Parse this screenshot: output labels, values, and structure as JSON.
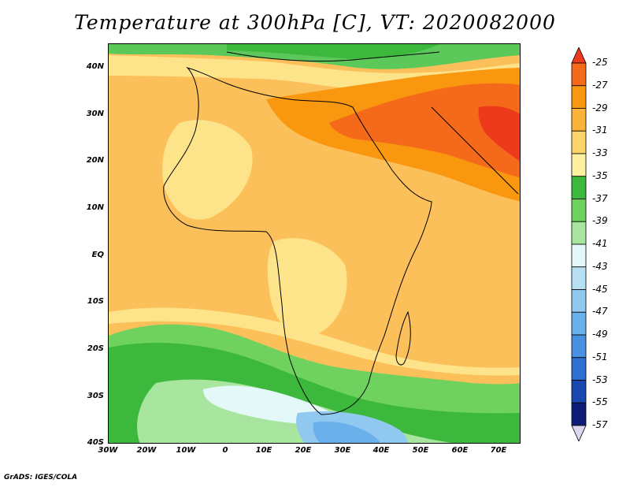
{
  "title": "Temperature at 300hPa [C], VT: 2020082000",
  "footer": "GrADS: IGES/COLA",
  "latitude_labels": [
    "40N",
    "30N",
    "20N",
    "10N",
    "EQ",
    "10S",
    "20S",
    "30S",
    "40S"
  ],
  "longitude_labels": [
    "30W",
    "20W",
    "10W",
    "0",
    "10E",
    "20E",
    "30E",
    "40E",
    "50E",
    "60E",
    "70E"
  ],
  "colorbar": {
    "labels": [
      "-25",
      "-27",
      "-29",
      "-31",
      "-33",
      "-35",
      "-37",
      "-39",
      "-41",
      "-43",
      "-45",
      "-47",
      "-49",
      "-51",
      "-53",
      "-55",
      "-57"
    ],
    "colors": [
      "#ee3a1c",
      "#f46a1a",
      "#f9970f",
      "#fbb43a",
      "#fcd56a",
      "#fdf0a0",
      "#3cb83c",
      "#70d25e",
      "#a8e6a0",
      "#e4f8f8",
      "#b8e0f5",
      "#90c8f0",
      "#6ab0eb",
      "#4a90e0",
      "#2e6fd0",
      "#1a48b0",
      "#0c1e78",
      "#dcd6f0"
    ]
  },
  "units": "C",
  "valid_time": "2020082000",
  "pressure_level": "300hPa"
}
